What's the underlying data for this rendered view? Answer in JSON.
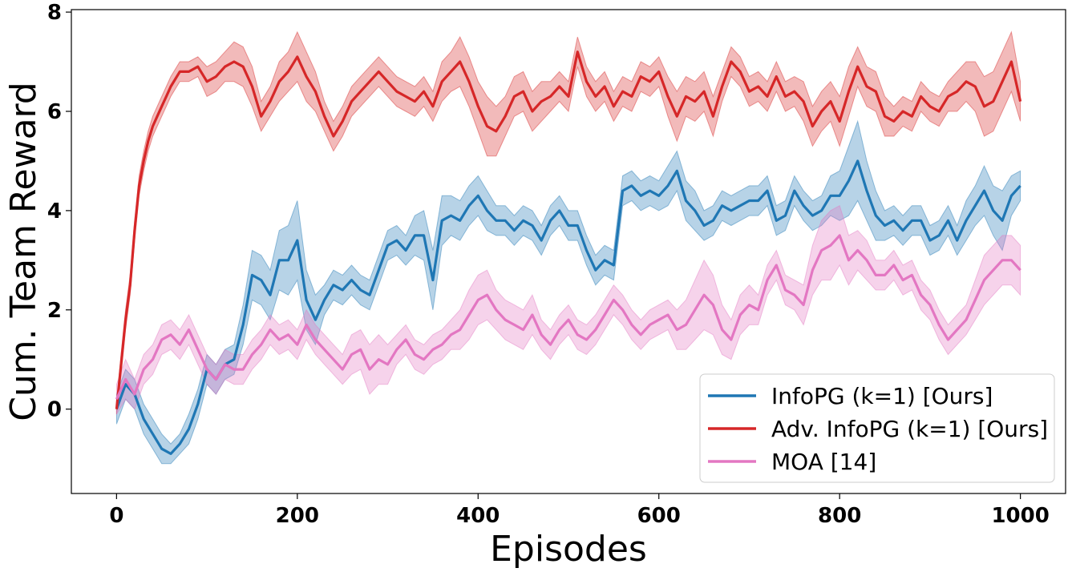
{
  "chart_data": {
    "type": "line",
    "title": "",
    "xlabel": "Episodes",
    "ylabel": "Cum. Team Reward",
    "xlim": [
      -50,
      1050
    ],
    "ylim": [
      -1.7,
      8.05
    ],
    "xticks": [
      0,
      200,
      400,
      600,
      800,
      1000
    ],
    "yticks": [
      0,
      2,
      4,
      6,
      8
    ],
    "grid": false,
    "legend_position": "bottom-right",
    "series": [
      {
        "name": "InfoPG (k=1) [Ours]",
        "color": "#1f77b4",
        "x": [
          0,
          10,
          20,
          30,
          40,
          50,
          60,
          70,
          80,
          90,
          100,
          110,
          120,
          130,
          140,
          150,
          160,
          170,
          180,
          190,
          200,
          210,
          220,
          230,
          240,
          250,
          260,
          270,
          280,
          290,
          300,
          310,
          320,
          330,
          340,
          350,
          360,
          370,
          380,
          390,
          400,
          410,
          420,
          430,
          440,
          450,
          460,
          470,
          480,
          490,
          500,
          510,
          520,
          530,
          540,
          550,
          560,
          570,
          580,
          590,
          600,
          610,
          620,
          630,
          640,
          650,
          660,
          670,
          680,
          690,
          700,
          710,
          720,
          730,
          740,
          750,
          760,
          770,
          780,
          790,
          800,
          810,
          820,
          830,
          840,
          850,
          860,
          870,
          880,
          890,
          900,
          910,
          920,
          930,
          940,
          950,
          960,
          970,
          980,
          990,
          1000
        ],
        "y": [
          0.0,
          0.5,
          0.3,
          -0.2,
          -0.5,
          -0.8,
          -0.9,
          -0.7,
          -0.4,
          0.1,
          0.8,
          0.6,
          0.9,
          1.0,
          1.7,
          2.7,
          2.6,
          2.3,
          3.0,
          3.0,
          3.4,
          2.2,
          1.8,
          2.2,
          2.5,
          2.4,
          2.6,
          2.4,
          2.3,
          2.8,
          3.3,
          3.4,
          3.2,
          3.5,
          3.5,
          2.6,
          3.8,
          3.9,
          3.8,
          4.1,
          4.3,
          4.0,
          3.8,
          3.8,
          3.6,
          3.8,
          3.7,
          3.4,
          3.8,
          4.0,
          3.7,
          3.7,
          3.2,
          2.8,
          3.0,
          2.9,
          4.4,
          4.5,
          4.3,
          4.4,
          4.3,
          4.5,
          4.8,
          4.2,
          4.0,
          3.7,
          3.8,
          4.1,
          4.0,
          4.1,
          4.2,
          4.2,
          4.4,
          3.8,
          3.9,
          4.4,
          4.1,
          3.9,
          4.0,
          4.3,
          4.3,
          4.6,
          5.0,
          4.4,
          3.9,
          3.7,
          3.8,
          3.6,
          3.8,
          3.8,
          3.4,
          3.5,
          3.8,
          3.4,
          3.8,
          4.1,
          4.4,
          4.0,
          3.8,
          4.3,
          4.5
        ],
        "band": [
          0.3,
          0.3,
          0.3,
          0.3,
          0.3,
          0.3,
          0.2,
          0.2,
          0.3,
          0.3,
          0.3,
          0.3,
          0.3,
          0.3,
          0.4,
          0.5,
          0.5,
          0.5,
          0.6,
          0.7,
          0.8,
          0.6,
          0.5,
          0.3,
          0.3,
          0.3,
          0.3,
          0.3,
          0.3,
          0.3,
          0.3,
          0.3,
          0.3,
          0.4,
          0.5,
          0.6,
          0.5,
          0.4,
          0.4,
          0.4,
          0.4,
          0.4,
          0.3,
          0.3,
          0.3,
          0.3,
          0.3,
          0.3,
          0.3,
          0.3,
          0.3,
          0.3,
          0.3,
          0.3,
          0.3,
          0.3,
          0.3,
          0.3,
          0.3,
          0.3,
          0.3,
          0.4,
          0.4,
          0.4,
          0.4,
          0.3,
          0.3,
          0.3,
          0.3,
          0.3,
          0.3,
          0.3,
          0.3,
          0.3,
          0.3,
          0.3,
          0.3,
          0.3,
          0.3,
          0.4,
          0.5,
          0.7,
          0.8,
          0.6,
          0.5,
          0.3,
          0.3,
          0.3,
          0.3,
          0.3,
          0.3,
          0.3,
          0.3,
          0.3,
          0.4,
          0.4,
          0.5,
          0.5,
          0.6,
          0.4,
          0.3
        ]
      },
      {
        "name": "Adv. InfoPG (k=1) [Ours]",
        "color": "#d62728",
        "x": [
          0,
          5,
          10,
          15,
          20,
          25,
          30,
          35,
          40,
          45,
          50,
          55,
          60,
          70,
          80,
          90,
          100,
          110,
          120,
          130,
          140,
          150,
          160,
          170,
          180,
          190,
          200,
          210,
          220,
          230,
          240,
          250,
          260,
          270,
          280,
          290,
          300,
          310,
          320,
          330,
          340,
          350,
          360,
          370,
          380,
          390,
          400,
          410,
          420,
          430,
          440,
          450,
          460,
          470,
          480,
          490,
          500,
          510,
          520,
          530,
          540,
          550,
          560,
          570,
          580,
          590,
          600,
          610,
          620,
          630,
          640,
          650,
          660,
          670,
          680,
          690,
          700,
          710,
          720,
          730,
          740,
          750,
          760,
          770,
          780,
          790,
          800,
          810,
          820,
          830,
          840,
          850,
          860,
          870,
          880,
          890,
          900,
          910,
          920,
          930,
          940,
          950,
          960,
          970,
          980,
          990,
          1000
        ],
        "y": [
          0.0,
          0.9,
          1.8,
          2.5,
          3.6,
          4.5,
          5.0,
          5.4,
          5.7,
          5.9,
          6.1,
          6.3,
          6.5,
          6.8,
          6.8,
          6.9,
          6.6,
          6.7,
          6.9,
          7.0,
          6.9,
          6.5,
          5.9,
          6.2,
          6.6,
          6.8,
          7.1,
          6.7,
          6.4,
          5.9,
          5.5,
          5.8,
          6.2,
          6.4,
          6.6,
          6.8,
          6.6,
          6.4,
          6.3,
          6.2,
          6.4,
          6.1,
          6.6,
          6.8,
          7.0,
          6.6,
          6.1,
          5.7,
          5.6,
          5.9,
          6.3,
          6.4,
          6.0,
          6.2,
          6.3,
          6.5,
          6.3,
          7.2,
          6.6,
          6.3,
          6.5,
          6.1,
          6.4,
          6.3,
          6.7,
          6.6,
          6.8,
          6.3,
          5.9,
          6.3,
          6.2,
          6.4,
          5.9,
          6.5,
          7.0,
          6.8,
          6.4,
          6.5,
          6.3,
          6.7,
          6.3,
          6.4,
          6.2,
          5.7,
          6.0,
          6.2,
          5.8,
          6.4,
          6.9,
          6.5,
          6.4,
          5.9,
          5.8,
          6.0,
          5.9,
          6.3,
          6.1,
          6.0,
          6.3,
          6.4,
          6.6,
          6.5,
          6.1,
          6.2,
          6.6,
          7.0,
          6.2
        ],
        "band": [
          0.1,
          0.2,
          0.2,
          0.2,
          0.2,
          0.2,
          0.2,
          0.2,
          0.2,
          0.2,
          0.2,
          0.2,
          0.2,
          0.2,
          0.2,
          0.2,
          0.3,
          0.3,
          0.3,
          0.4,
          0.4,
          0.4,
          0.3,
          0.3,
          0.4,
          0.4,
          0.5,
          0.5,
          0.4,
          0.3,
          0.3,
          0.3,
          0.3,
          0.3,
          0.3,
          0.3,
          0.3,
          0.3,
          0.3,
          0.3,
          0.3,
          0.3,
          0.4,
          0.4,
          0.5,
          0.5,
          0.5,
          0.6,
          0.5,
          0.4,
          0.4,
          0.4,
          0.4,
          0.4,
          0.3,
          0.3,
          0.3,
          0.3,
          0.3,
          0.3,
          0.3,
          0.3,
          0.3,
          0.3,
          0.3,
          0.3,
          0.3,
          0.4,
          0.5,
          0.4,
          0.4,
          0.4,
          0.4,
          0.3,
          0.3,
          0.3,
          0.3,
          0.3,
          0.3,
          0.3,
          0.3,
          0.3,
          0.4,
          0.4,
          0.4,
          0.4,
          0.5,
          0.5,
          0.4,
          0.4,
          0.4,
          0.4,
          0.3,
          0.3,
          0.3,
          0.3,
          0.3,
          0.3,
          0.3,
          0.4,
          0.4,
          0.5,
          0.6,
          0.6,
          0.6,
          0.6,
          0.4
        ]
      },
      {
        "name": "MOA [14]",
        "color": "#e377c2",
        "x": [
          0,
          10,
          20,
          30,
          40,
          50,
          60,
          70,
          80,
          90,
          100,
          110,
          120,
          130,
          140,
          150,
          160,
          170,
          180,
          190,
          200,
          210,
          220,
          230,
          240,
          250,
          260,
          270,
          280,
          290,
          300,
          310,
          320,
          330,
          340,
          350,
          360,
          370,
          380,
          390,
          400,
          410,
          420,
          430,
          440,
          450,
          460,
          470,
          480,
          490,
          500,
          510,
          520,
          530,
          540,
          550,
          560,
          570,
          580,
          590,
          600,
          610,
          620,
          630,
          640,
          650,
          660,
          670,
          680,
          690,
          700,
          710,
          720,
          730,
          740,
          750,
          760,
          770,
          780,
          790,
          800,
          810,
          820,
          830,
          840,
          850,
          860,
          870,
          880,
          890,
          900,
          910,
          920,
          930,
          940,
          950,
          960,
          970,
          980,
          990,
          1000
        ],
        "y": [
          0.2,
          0.6,
          0.3,
          0.8,
          1.0,
          1.4,
          1.5,
          1.3,
          1.6,
          1.2,
          0.8,
          0.6,
          0.9,
          0.8,
          0.8,
          1.1,
          1.3,
          1.6,
          1.4,
          1.5,
          1.3,
          1.7,
          1.4,
          1.2,
          1.0,
          0.8,
          1.1,
          1.2,
          0.8,
          1.0,
          0.9,
          1.2,
          1.4,
          1.1,
          1.0,
          1.2,
          1.3,
          1.5,
          1.6,
          1.9,
          2.2,
          2.3,
          2.0,
          1.8,
          1.7,
          1.6,
          1.9,
          1.5,
          1.3,
          1.6,
          1.8,
          1.5,
          1.4,
          1.6,
          1.9,
          2.2,
          2.0,
          1.7,
          1.5,
          1.7,
          1.8,
          1.9,
          1.6,
          1.7,
          2.0,
          2.3,
          2.1,
          1.6,
          1.4,
          1.9,
          2.1,
          2.0,
          2.6,
          2.9,
          2.4,
          2.3,
          2.1,
          2.8,
          3.2,
          3.3,
          3.5,
          3.0,
          3.2,
          3.0,
          2.7,
          2.7,
          2.9,
          2.6,
          2.7,
          2.3,
          2.1,
          1.7,
          1.4,
          1.6,
          1.8,
          2.2,
          2.6,
          2.8,
          3.0,
          3.0,
          2.8
        ],
        "band": [
          0.3,
          0.4,
          0.3,
          0.3,
          0.3,
          0.3,
          0.3,
          0.3,
          0.3,
          0.3,
          0.3,
          0.3,
          0.3,
          0.3,
          0.3,
          0.3,
          0.3,
          0.3,
          0.3,
          0.3,
          0.3,
          0.3,
          0.3,
          0.3,
          0.3,
          0.3,
          0.4,
          0.4,
          0.5,
          0.5,
          0.4,
          0.3,
          0.3,
          0.3,
          0.3,
          0.3,
          0.3,
          0.3,
          0.4,
          0.5,
          0.5,
          0.5,
          0.4,
          0.4,
          0.4,
          0.4,
          0.4,
          0.3,
          0.3,
          0.3,
          0.3,
          0.3,
          0.3,
          0.3,
          0.3,
          0.3,
          0.3,
          0.3,
          0.3,
          0.3,
          0.3,
          0.3,
          0.4,
          0.5,
          0.6,
          0.7,
          0.6,
          0.5,
          0.4,
          0.4,
          0.4,
          0.3,
          0.3,
          0.3,
          0.3,
          0.3,
          0.4,
          0.5,
          0.6,
          0.7,
          0.6,
          0.5,
          0.4,
          0.4,
          0.3,
          0.3,
          0.3,
          0.3,
          0.3,
          0.3,
          0.3,
          0.3,
          0.3,
          0.3,
          0.3,
          0.4,
          0.5,
          0.5,
          0.5,
          0.5,
          0.5
        ]
      }
    ]
  }
}
